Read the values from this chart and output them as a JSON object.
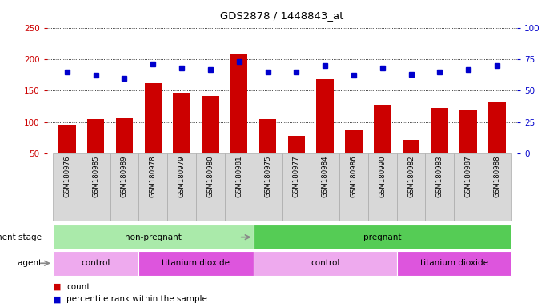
{
  "title": "GDS2878 / 1448843_at",
  "samples": [
    "GSM180976",
    "GSM180985",
    "GSM180989",
    "GSM180978",
    "GSM180979",
    "GSM180980",
    "GSM180981",
    "GSM180975",
    "GSM180977",
    "GSM180984",
    "GSM180986",
    "GSM180990",
    "GSM180982",
    "GSM180983",
    "GSM180987",
    "GSM180988"
  ],
  "counts": [
    96,
    104,
    107,
    162,
    146,
    141,
    207,
    104,
    78,
    168,
    88,
    128,
    72,
    122,
    120,
    131
  ],
  "percentile_ranks": [
    65,
    62,
    60,
    71,
    68,
    67,
    73,
    65,
    65,
    70,
    62,
    68,
    63,
    65,
    67,
    70
  ],
  "ylim_left": [
    50,
    250
  ],
  "ylim_right": [
    0,
    100
  ],
  "left_ticks": [
    50,
    100,
    150,
    200,
    250
  ],
  "right_ticks": [
    0,
    25,
    50,
    75,
    100
  ],
  "bar_color": "#cc0000",
  "dot_color": "#0000cc",
  "groups": {
    "development_stage": [
      {
        "label": "non-pregnant",
        "start": 0,
        "end": 7,
        "color": "#aaeaaa"
      },
      {
        "label": "pregnant",
        "start": 7,
        "end": 16,
        "color": "#55cc55"
      }
    ],
    "agent": [
      {
        "label": "control",
        "start": 0,
        "end": 3,
        "color": "#eeaaee"
      },
      {
        "label": "titanium dioxide",
        "start": 3,
        "end": 7,
        "color": "#dd55dd"
      },
      {
        "label": "control",
        "start": 7,
        "end": 12,
        "color": "#eeaaee"
      },
      {
        "label": "titanium dioxide",
        "start": 12,
        "end": 16,
        "color": "#dd55dd"
      }
    ]
  },
  "dev_stage_label": "development stage",
  "agent_label": "agent",
  "legend_count_label": "count",
  "legend_pct_label": "percentile rank within the sample",
  "background_color": "#ffffff",
  "plot_bg_color": "#ffffff",
  "grid_color": "#000000",
  "ylabel_left_color": "#cc0000",
  "ylabel_right_color": "#0000cc",
  "xtick_bg_color": "#d8d8d8",
  "xtick_border_color": "#aaaaaa"
}
